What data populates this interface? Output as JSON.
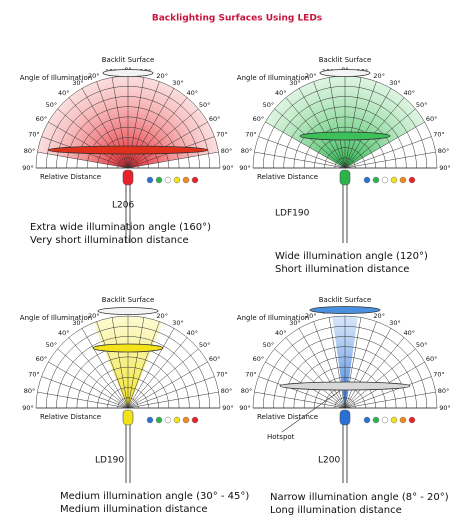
{
  "title": "Backlighting Surfaces Using LEDs",
  "angle_labels": [
    "0°",
    "10°",
    "20°",
    "30°",
    "40°",
    "50°",
    "60°",
    "70°",
    "80°",
    "90°"
  ],
  "panels": [
    {
      "surface_label": "Backlit Surface",
      "angle_label": "Angle of Illumination",
      "distance_label": "Relative Distance",
      "model": "L206",
      "lines": [
        "Extra wide illumination angle (160°)",
        "Very short illumination distance"
      ]
    },
    {
      "surface_label": "Backlit Surface",
      "angle_label": "Angle of Illumination",
      "distance_label": "Relative Distance",
      "model": "LDF190",
      "lines": [
        "Wide illumination angle (120°)",
        "Short illumination distance"
      ]
    },
    {
      "surface_label": "Backlit Surface",
      "angle_label": "Angle of Illumination",
      "distance_label": "Relative Distance",
      "model": "LD190",
      "lines": [
        "Medium illumination angle (30° - 45°)",
        "Medium illumination distance"
      ]
    },
    {
      "surface_label": "Backlit Surface",
      "angle_label": "Angle of Illumination",
      "distance_label": "Relative Distance",
      "model": "L200",
      "lines": [
        "Narrow illumination angle (8° - 20°)",
        "Long illumination distance"
      ],
      "hotspot": "Hotspot"
    }
  ]
}
